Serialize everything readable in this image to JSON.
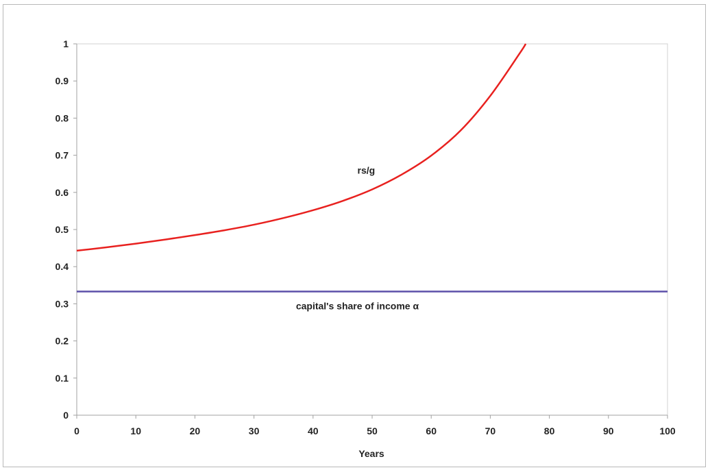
{
  "chart_data": {
    "type": "line",
    "title": "",
    "xlabel": "Years",
    "ylabel": "",
    "xlim": [
      0,
      100
    ],
    "ylim": [
      0,
      1
    ],
    "xticks": [
      "0",
      "10",
      "20",
      "30",
      "40",
      "50",
      "60",
      "70",
      "80",
      "90",
      "100"
    ],
    "yticks": [
      "0",
      "0.1",
      "0.2",
      "0.3",
      "0.4",
      "0.5",
      "0.6",
      "0.7",
      "0.8",
      "0.9",
      "1"
    ],
    "grid": false,
    "series": [
      {
        "name": "rs/g",
        "color": "#e8211f",
        "x": [
          0,
          5,
          10,
          15,
          20,
          25,
          30,
          35,
          40,
          45,
          50,
          55,
          60,
          65,
          70,
          75,
          76
        ],
        "y": [
          0.443,
          0.452,
          0.462,
          0.473,
          0.485,
          0.498,
          0.513,
          0.531,
          0.552,
          0.577,
          0.608,
          0.648,
          0.699,
          0.767,
          0.86,
          0.975,
          1.0
        ]
      },
      {
        "name": "capital's share of income α",
        "color": "#5b4fa8",
        "x": [
          0,
          100
        ],
        "y": [
          0.333,
          0.333
        ]
      }
    ],
    "annotations": [
      {
        "text": "rs/g",
        "x": 49,
        "y": 0.65
      },
      {
        "text": "capital's share of income α",
        "x": 47.5,
        "y": 0.285
      }
    ]
  }
}
